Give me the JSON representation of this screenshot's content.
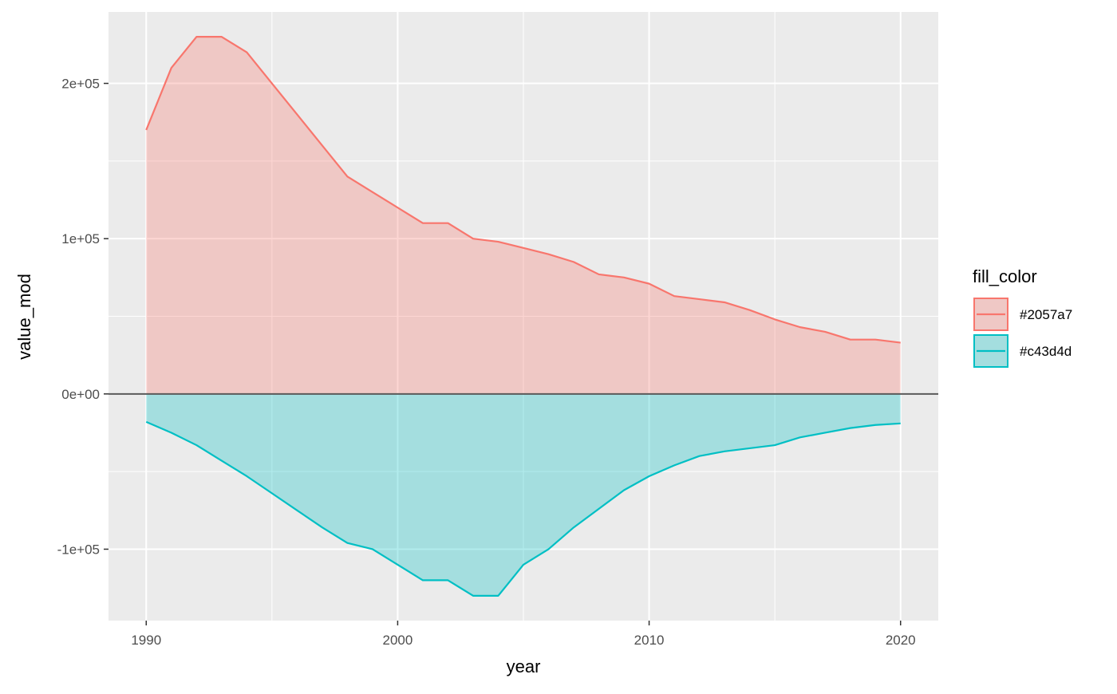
{
  "chart_data": {
    "type": "area",
    "xlabel": "year",
    "ylabel": "value_mod",
    "xlim": [
      1988.5,
      2021.5
    ],
    "ylim": [
      -146000,
      246000
    ],
    "x_ticks": [
      1990,
      2000,
      2010,
      2020
    ],
    "x_tick_labels": [
      "1990",
      "2000",
      "2010",
      "2020"
    ],
    "y_ticks": [
      -100000,
      0,
      100000,
      200000
    ],
    "y_tick_labels": [
      "-1e+05",
      "0e+00",
      "1e+05",
      "2e+05"
    ],
    "grid": true,
    "zero_line": 0,
    "legend": {
      "title": "fill_color",
      "position": "right",
      "entries": [
        "#2057a7",
        "#c43d4d"
      ]
    },
    "x": [
      1990,
      1991,
      1992,
      1993,
      1994,
      1995,
      1996,
      1997,
      1998,
      1999,
      2000,
      2001,
      2002,
      2003,
      2004,
      2005,
      2006,
      2007,
      2008,
      2009,
      2010,
      2011,
      2012,
      2013,
      2014,
      2015,
      2016,
      2017,
      2018,
      2019,
      2020
    ],
    "series": [
      {
        "name": "#2057a7",
        "color": "#f8766d",
        "values": [
          170000,
          210000,
          230000,
          230000,
          220000,
          200000,
          180000,
          160000,
          140000,
          130000,
          120000,
          110000,
          110000,
          100000,
          98000,
          94000,
          90000,
          85000,
          77000,
          75000,
          71000,
          63000,
          61000,
          59000,
          54000,
          48000,
          43000,
          40000,
          35000,
          35000,
          33000
        ]
      },
      {
        "name": "#c43d4d",
        "color": "#00bfc4",
        "values": [
          -18000,
          -25000,
          -33000,
          -43000,
          -53000,
          -64000,
          -75000,
          -86000,
          -96000,
          -100000,
          -110000,
          -120000,
          -120000,
          -130000,
          -130000,
          -110000,
          -100000,
          -86000,
          -74000,
          -62000,
          -53000,
          -46000,
          -40000,
          -37000,
          -35000,
          -33000,
          -28000,
          -25000,
          -22000,
          -20000,
          -19000
        ]
      }
    ]
  }
}
